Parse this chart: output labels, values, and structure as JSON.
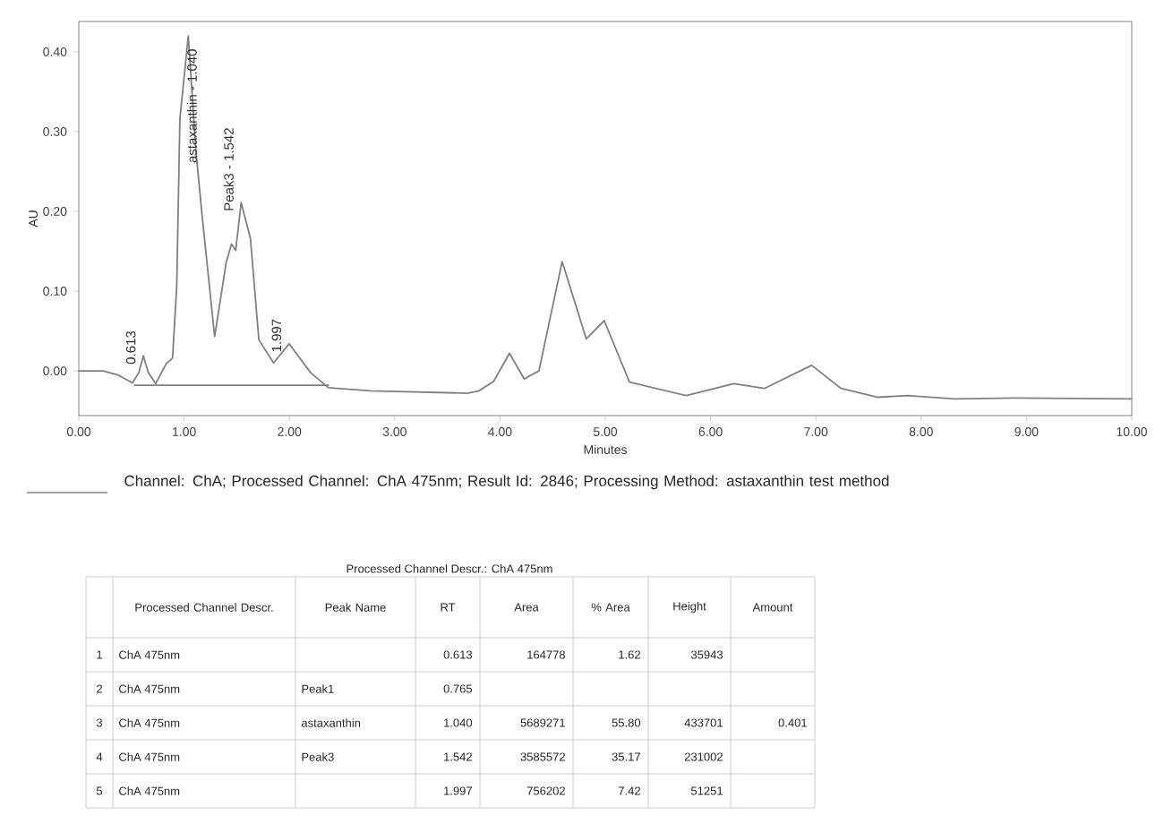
{
  "chart_data": {
    "type": "line",
    "xlabel": "Minutes",
    "ylabel": "AU",
    "xlim": [
      0,
      10
    ],
    "ylim": [
      -0.056,
      0.438
    ],
    "xticks": [
      {
        "value": 0,
        "label": "0.00"
      },
      {
        "value": 1,
        "label": "1.00"
      },
      {
        "value": 2,
        "label": "2.00"
      },
      {
        "value": 3,
        "label": "3.00"
      },
      {
        "value": 4,
        "label": "4.00"
      },
      {
        "value": 5,
        "label": "5.00"
      },
      {
        "value": 6,
        "label": "6.00"
      },
      {
        "value": 7,
        "label": "7.00"
      },
      {
        "value": 8,
        "label": "8.00"
      },
      {
        "value": 9,
        "label": "9.00"
      },
      {
        "value": 10,
        "label": "10.00"
      }
    ],
    "yticks": [
      {
        "value": 0,
        "label": "0.00"
      },
      {
        "value": 0.1,
        "label": "0.10"
      },
      {
        "value": 0.2,
        "label": "0.20"
      },
      {
        "value": 0.3,
        "label": "0.30"
      },
      {
        "value": 0.4,
        "label": "0.40"
      }
    ],
    "legend": "bottom",
    "series": [
      {
        "name": "Channel: ChA;   Processed Channel: ChA 475nm;   Result Id: 2846;   Processing Method: astaxanthin test method",
        "color": "#808080",
        "x": [
          0,
          0.23,
          0.37,
          0.51,
          0.57,
          0.613,
          0.66,
          0.73,
          0.83,
          0.89,
          0.93,
          0.96,
          1.04,
          1.11,
          1.17,
          1.29,
          1.4,
          1.45,
          1.49,
          1.542,
          1.63,
          1.71,
          1.85,
          1.997,
          2.2,
          2.37,
          2.77,
          3.69,
          3.8,
          3.94,
          4.09,
          4.23,
          4.37,
          4.59,
          4.82,
          4.99,
          5.23,
          5.77,
          6.22,
          6.51,
          6.96,
          7.24,
          7.59,
          7.87,
          8.32,
          8.89,
          10.0
        ],
        "values": [
          0,
          0,
          -0.005,
          -0.015,
          -0.002,
          0.019,
          -0.002,
          -0.016,
          0.009,
          0.016,
          0.106,
          0.316,
          0.42,
          0.279,
          0.196,
          0.043,
          0.136,
          0.159,
          0.151,
          0.211,
          0.166,
          0.039,
          0.01,
          0.034,
          -0.002,
          -0.021,
          -0.025,
          -0.028,
          -0.025,
          -0.013,
          0.022,
          -0.01,
          0,
          0.137,
          0.04,
          0.063,
          -0.014,
          -0.031,
          -0.016,
          -0.022,
          0.007,
          -0.022,
          -0.033,
          -0.031,
          -0.035,
          -0.034,
          -0.035
        ]
      },
      {
        "type": "line",
        "color": "#808080",
        "x": [
          0.53,
          2.37
        ],
        "values": [
          -0.018,
          -0.018
        ]
      }
    ],
    "annotations": [
      {
        "text": "0.613",
        "x": 0.613,
        "y": 0.019
      },
      {
        "text": "astaxanthin - 1.040",
        "x": 1.04,
        "y": 0.42
      },
      {
        "text": "Peak3 - 1.542",
        "x": 1.542,
        "y": 0.211
      },
      {
        "text": "1.997",
        "x": 1.997,
        "y": 0.034
      },
      "Processed Channel Descr.: ChA 475nm",
      "Processed Channel Descr.",
      "Peak Name",
      "RT",
      "Area",
      "% Area",
      "Height",
      "Amount",
      "1",
      "ChA 475nm",
      "0.613",
      "164778",
      "1.62",
      "35943",
      "2",
      "ChA 475nm",
      "Peak1",
      "0.765",
      "3",
      "ChA 475nm",
      "astaxanthin",
      "1.040",
      "5689271",
      "55.80",
      "433701",
      "0.401",
      "4",
      "ChA 475nm",
      "Peak3",
      "1.542",
      "3585572",
      "35.17",
      "231002",
      "5",
      "ChA 475nm",
      "1.997",
      "756202",
      "7.42",
      "51251"
    ]
  }
}
